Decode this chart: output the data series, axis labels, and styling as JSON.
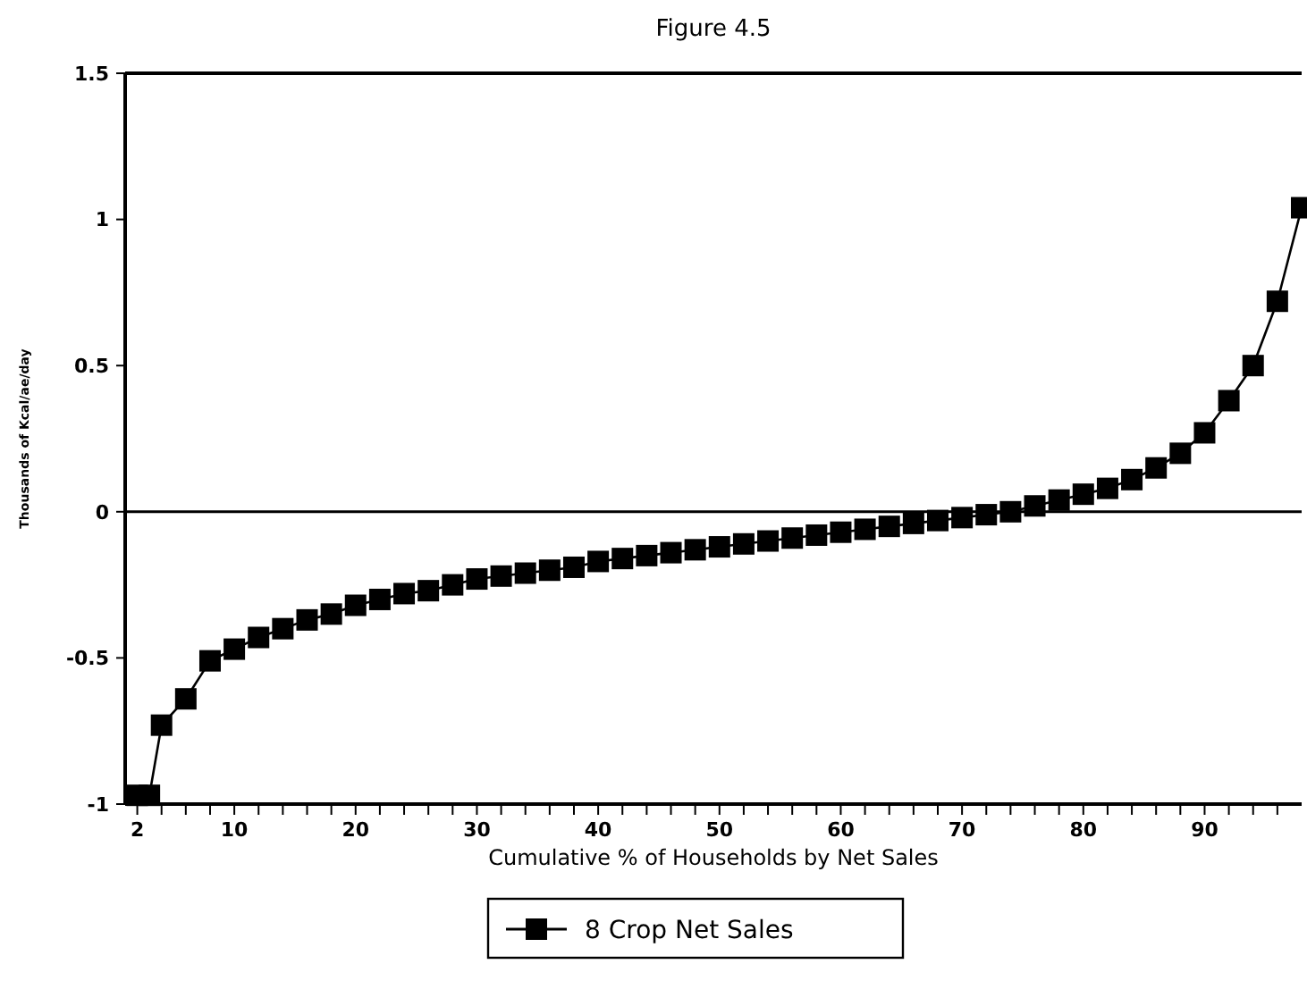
{
  "chart_data": {
    "type": "line",
    "title": "Figure 4.5",
    "xlabel": "Cumulative % of Households by Net Sales",
    "ylabel": "Thousands of Kcal/ae/day",
    "x": [
      2,
      3,
      4,
      6,
      8,
      10,
      12,
      14,
      16,
      18,
      20,
      22,
      24,
      26,
      28,
      30,
      32,
      34,
      36,
      38,
      40,
      42,
      44,
      46,
      48,
      50,
      52,
      54,
      56,
      58,
      60,
      62,
      64,
      66,
      68,
      70,
      72,
      74,
      76,
      78,
      80,
      82,
      84,
      86,
      88,
      90,
      92,
      94,
      96,
      98
    ],
    "series": [
      {
        "name": "8 Crop Net Sales",
        "color": "#000000",
        "values": [
          -0.97,
          -0.97,
          -0.73,
          -0.64,
          -0.51,
          -0.47,
          -0.43,
          -0.4,
          -0.37,
          -0.35,
          -0.32,
          -0.3,
          -0.28,
          -0.27,
          -0.25,
          -0.23,
          -0.22,
          -0.21,
          -0.2,
          -0.19,
          -0.17,
          -0.16,
          -0.15,
          -0.14,
          -0.13,
          -0.12,
          -0.11,
          -0.1,
          -0.09,
          -0.08,
          -0.07,
          -0.06,
          -0.05,
          -0.04,
          -0.03,
          -0.02,
          -0.01,
          0,
          0.02,
          0.04,
          0.06,
          0.08,
          0.11,
          0.15,
          0.2,
          0.27,
          0.38,
          0.5,
          0.72,
          1.04
        ]
      }
    ],
    "xlim": [
      1,
      98
    ],
    "ylim": [
      -1,
      1.5
    ],
    "xticks": [
      2,
      {
        "value": 4,
        "label": null
      },
      {
        "value": 6,
        "label": null
      },
      {
        "value": 8,
        "label": null
      },
      10,
      {
        "value": 12,
        "label": null
      },
      {
        "value": 14,
        "label": null
      },
      {
        "value": 16,
        "label": null
      },
      {
        "value": 18,
        "label": null
      },
      20,
      {
        "value": 22,
        "label": null
      },
      {
        "value": 24,
        "label": null
      },
      {
        "value": 26,
        "label": null
      },
      {
        "value": 28,
        "label": null
      },
      30,
      {
        "value": 32,
        "label": null
      },
      {
        "value": 34,
        "label": null
      },
      {
        "value": 36,
        "label": null
      },
      {
        "value": 38,
        "label": null
      },
      40,
      {
        "value": 42,
        "label": null
      },
      {
        "value": 44,
        "label": null
      },
      {
        "value": 46,
        "label": null
      },
      {
        "value": 48,
        "label": null
      },
      50,
      {
        "value": 52,
        "label": null
      },
      {
        "value": 54,
        "label": null
      },
      {
        "value": 56,
        "label": null
      },
      {
        "value": 58,
        "label": null
      },
      60,
      {
        "value": 62,
        "label": null
      },
      {
        "value": 64,
        "label": null
      },
      {
        "value": 66,
        "label": null
      },
      {
        "value": 68,
        "label": null
      },
      70,
      {
        "value": 72,
        "label": null
      },
      {
        "value": 74,
        "label": null
      },
      {
        "value": 76,
        "label": null
      },
      {
        "value": 78,
        "label": null
      },
      80,
      {
        "value": 82,
        "label": null
      },
      {
        "value": 84,
        "label": null
      },
      {
        "value": 86,
        "label": null
      },
      {
        "value": 88,
        "label": null
      },
      90,
      {
        "value": 92,
        "label": null
      },
      {
        "value": 94,
        "label": null
      },
      {
        "value": 96,
        "label": null
      }
    ],
    "yticks": [
      -1,
      -0.5,
      0,
      0.5,
      1,
      1.5
    ],
    "ref_lines": [
      {
        "axis": "y",
        "value": 0,
        "color": "#000000"
      }
    ],
    "grid": false,
    "legend": "bottom",
    "marker": "square",
    "line_style": "solid"
  }
}
